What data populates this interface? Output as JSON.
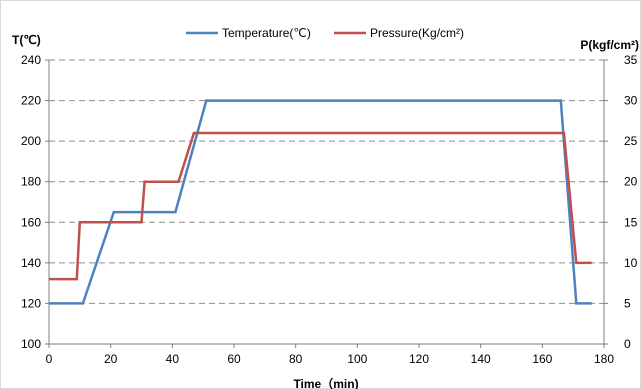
{
  "chart_data": {
    "type": "line",
    "left_axis_title": "T(℃)",
    "right_axis_title": "P(kgf/cm²)",
    "xlabel": "Time（min)",
    "xlim": [
      0,
      180
    ],
    "ylim_left": [
      100,
      240
    ],
    "ylim_right": [
      0,
      35
    ],
    "x_ticks": [
      "0",
      "20",
      "40",
      "60",
      "80",
      "100",
      "120",
      "140",
      "160",
      "180"
    ],
    "y_left_ticks": [
      "100",
      "120",
      "140",
      "160",
      "180",
      "200",
      "220",
      "240"
    ],
    "y_right_ticks": [
      "0",
      "5",
      "10",
      "15",
      "20",
      "25",
      "30",
      "35"
    ],
    "grid": "horizontal dashed",
    "legend_position": "top",
    "series": [
      {
        "name": "Temperature(℃)",
        "axis": "left",
        "color": "#4f81bd",
        "points": [
          [
            0,
            120
          ],
          [
            11,
            120
          ],
          [
            21,
            165
          ],
          [
            41,
            165
          ],
          [
            51,
            220
          ],
          [
            166,
            220
          ],
          [
            171,
            120
          ],
          [
            176,
            120
          ]
        ]
      },
      {
        "name": "Pressure(Kg/cm²)",
        "axis": "right",
        "color": "#c0504d",
        "points": [
          [
            0,
            8
          ],
          [
            9,
            8
          ],
          [
            10,
            15
          ],
          [
            30,
            15
          ],
          [
            31,
            20
          ],
          [
            42,
            20
          ],
          [
            47,
            26
          ],
          [
            167,
            26
          ],
          [
            171,
            10
          ],
          [
            176,
            10
          ]
        ]
      }
    ]
  }
}
